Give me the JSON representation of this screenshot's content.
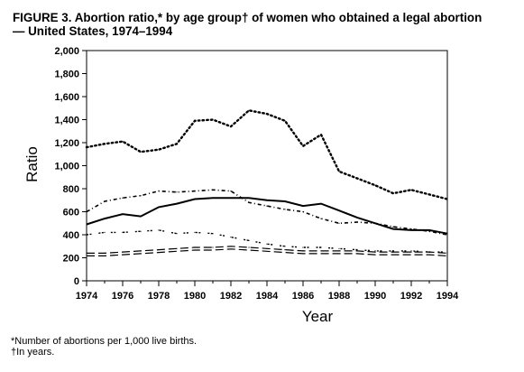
{
  "title_line1": "FIGURE 3. Abortion ratio,* by age group† of women who obtained a legal abortion",
  "title_line2": "— United States, 1974–1994",
  "footnote1": "*Number of abortions per 1,000 live births.",
  "footnote2": "†In years.",
  "chart_data": {
    "type": "line",
    "title": "Abortion ratio,* by age group† of women who obtained a legal abortion — United States, 1974–1994",
    "xlabel": "Year",
    "ylabel": "Ratio",
    "xlim": [
      1974,
      1994
    ],
    "ylim": [
      0,
      2000
    ],
    "xticks": [
      "1974",
      "1976",
      "1978",
      "1980",
      "1982",
      "1984",
      "1986",
      "1988",
      "1990",
      "1992",
      "1994"
    ],
    "yticks": [
      "0",
      "200",
      "400",
      "600",
      "800",
      "1,000",
      "1,200",
      "1,400",
      "1,600",
      "1,800",
      "2,000"
    ],
    "grid": false,
    "legend": "none",
    "x": [
      1974,
      1975,
      1976,
      1977,
      1978,
      1979,
      1980,
      1981,
      1982,
      1983,
      1984,
      1985,
      1986,
      1987,
      1988,
      1989,
      1990,
      1991,
      1992,
      1993,
      1994
    ],
    "series": [
      {
        "style": "dotted",
        "values": [
          1160,
          1190,
          1210,
          1120,
          1140,
          1190,
          1390,
          1400,
          1340,
          1480,
          1450,
          1390,
          1170,
          1270,
          950,
          890,
          830,
          760,
          790,
          750,
          710
        ]
      },
      {
        "style": "solid",
        "values": [
          490,
          540,
          580,
          560,
          640,
          670,
          710,
          720,
          720,
          720,
          700,
          690,
          650,
          670,
          610,
          550,
          500,
          450,
          440,
          440,
          410
        ]
      },
      {
        "style": "dash-dot",
        "values": [
          600,
          690,
          720,
          740,
          780,
          770,
          780,
          790,
          780,
          680,
          650,
          620,
          600,
          540,
          500,
          510,
          500,
          470,
          450,
          430,
          400
        ]
      },
      {
        "style": "tilde",
        "values": [
          400,
          420,
          420,
          430,
          440,
          410,
          420,
          410,
          380,
          350,
          320,
          300,
          290,
          290,
          280,
          270,
          260,
          260,
          260,
          250,
          250
        ]
      },
      {
        "style": "double-dash",
        "values": [
          240,
          240,
          250,
          260,
          270,
          280,
          290,
          290,
          300,
          290,
          280,
          270,
          260,
          260,
          260,
          260,
          250,
          250,
          250,
          250,
          240
        ]
      }
    ]
  }
}
